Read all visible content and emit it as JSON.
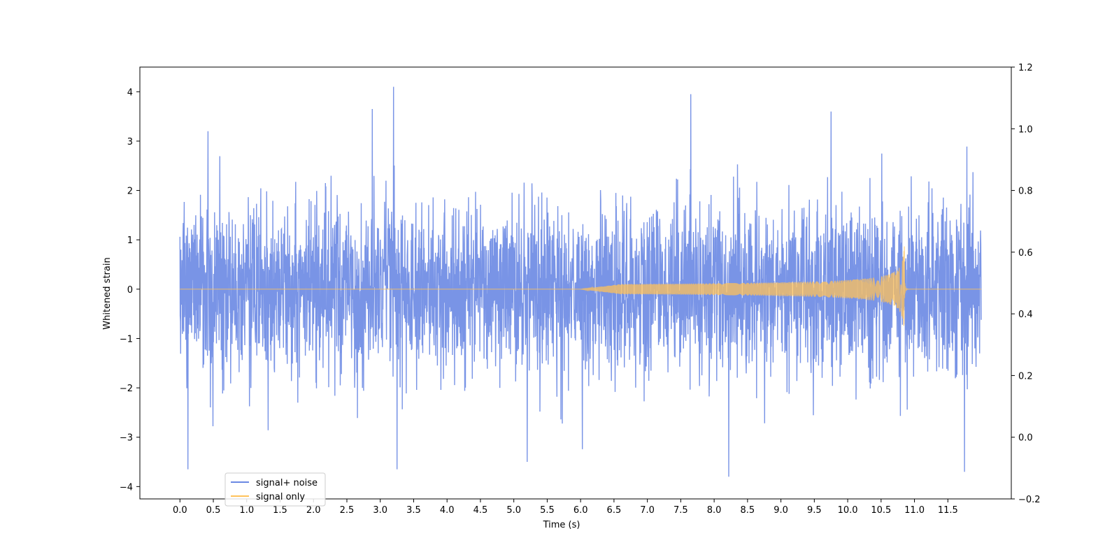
{
  "chart_data": {
    "type": "line",
    "title": "",
    "xlabel": "Time (s)",
    "ylabel": "Whitened strain",
    "y2label": "",
    "xlim": [
      -0.6,
      12.45
    ],
    "ylim": [
      -4.25,
      4.5
    ],
    "y2lim": [
      -0.2,
      1.2
    ],
    "x_ticks": [
      0.0,
      0.5,
      1.0,
      1.5,
      2.0,
      2.5,
      3.0,
      3.5,
      4.0,
      4.5,
      5.0,
      5.5,
      6.0,
      6.5,
      7.0,
      7.5,
      8.0,
      8.5,
      9.0,
      9.5,
      10.0,
      10.5,
      11.0,
      11.5
    ],
    "x_tick_labels": [
      "0.0",
      "0.5",
      "1.0",
      "1.5",
      "2.0",
      "2.5",
      "3.0",
      "3.5",
      "4.0",
      "4.5",
      "5.0",
      "5.5",
      "6.0",
      "6.5",
      "7.0",
      "7.5",
      "8.0",
      "8.5",
      "9.0",
      "9.5",
      "10.0",
      "10.5",
      "11.0",
      "11.5"
    ],
    "y_ticks": [
      4,
      3,
      2,
      1,
      0,
      -1,
      -2,
      -3,
      -4
    ],
    "y_tick_labels": [
      "4",
      "3",
      "2",
      "1",
      "0",
      "−1",
      "−2",
      "−3",
      "−4"
    ],
    "y2_ticks": [
      1.2,
      1.0,
      0.8,
      0.6,
      0.4,
      0.2,
      0.0,
      -0.2
    ],
    "y2_tick_labels": [
      "1.2",
      "1.0",
      "0.8",
      "0.6",
      "0.4",
      "0.2",
      "0.0",
      "−0.2"
    ],
    "grid": false,
    "legend_position": "lower-left",
    "series": [
      {
        "name": "signal+ noise",
        "color": "#6a88e3",
        "kind": "noise",
        "x_range": [
          0.0,
          12.0
        ],
        "envelope_typical": [
          -1.9,
          1.9
        ],
        "notable_peaks": [
          {
            "x": 0.12,
            "y": -3.65
          },
          {
            "x": 0.42,
            "y": 3.2
          },
          {
            "x": 2.88,
            "y": 3.65
          },
          {
            "x": 3.2,
            "y": 4.1
          },
          {
            "x": 3.25,
            "y": -3.65
          },
          {
            "x": 5.2,
            "y": -3.5
          },
          {
            "x": 7.65,
            "y": 3.95
          },
          {
            "x": 8.22,
            "y": -3.8
          },
          {
            "x": 9.75,
            "y": 3.6
          },
          {
            "x": 11.75,
            "y": -3.7
          }
        ]
      },
      {
        "name": "signal only",
        "color": "#ffc25a",
        "kind": "chirp",
        "x_range": [
          0.0,
          12.0
        ],
        "merger_time": 10.85,
        "merger_amplitude": 0.95,
        "visible_onset": 6.6
      }
    ]
  }
}
